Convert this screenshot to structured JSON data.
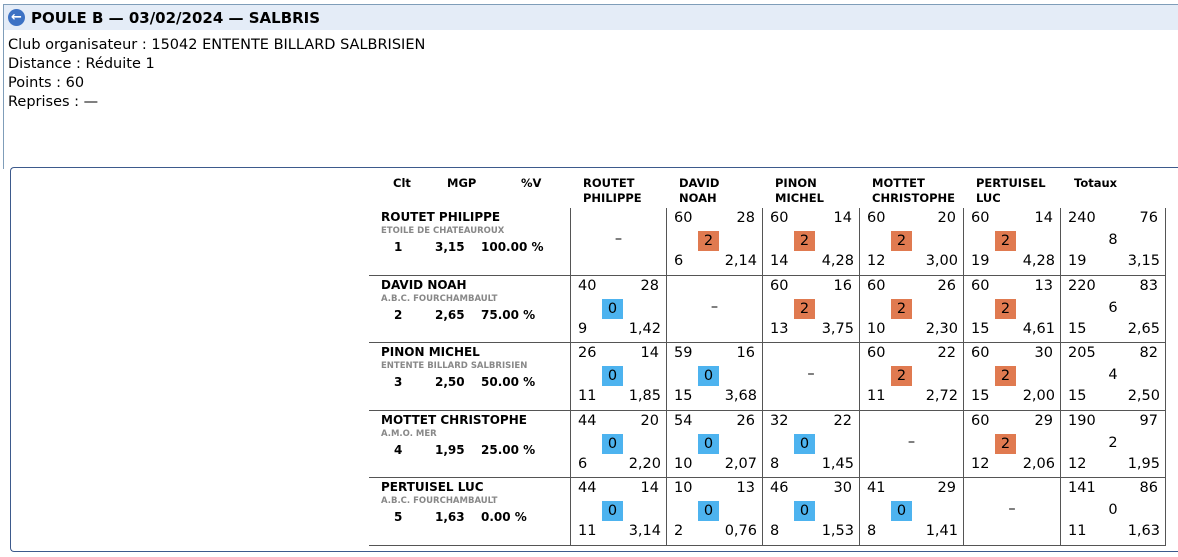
{
  "header": {
    "title": "POULE B — 03/02/2024 — SALBRIS"
  },
  "info": {
    "club": "Club organisateur : 15042 ENTENTE BILLARD SALBRISIEN",
    "distance": "Distance : Réduite 1",
    "points": "Points : 60",
    "reprises": "Reprises : —"
  },
  "table": {
    "columns": {
      "clt": "Clt",
      "mgp": "MGP",
      "pv": "%V",
      "totaux": "Totaux"
    },
    "opponent_headers": [
      [
        "ROUTET",
        "PHILIPPE"
      ],
      [
        "DAVID",
        "NOAH"
      ],
      [
        "PINON",
        "MICHEL"
      ],
      [
        "MOTTET",
        "CHRISTOPHE"
      ],
      [
        "PERTUISEL",
        "LUC"
      ]
    ],
    "rows": [
      {
        "name": "ROUTET PHILIPPE",
        "club": "ETOILE DE CHATEAUROUX",
        "clt": "1",
        "mgp": "3,15",
        "pv": "100.00 %",
        "matches": [
          null,
          {
            "pts": "60",
            "serie": "28",
            "res": "2",
            "rep": "6",
            "moy": "2,14"
          },
          {
            "pts": "60",
            "serie": "14",
            "res": "2",
            "rep": "14",
            "moy": "4,28"
          },
          {
            "pts": "60",
            "serie": "20",
            "res": "2",
            "rep": "12",
            "moy": "3,00"
          },
          {
            "pts": "60",
            "serie": "14",
            "res": "2",
            "rep": "19",
            "moy": "4,28"
          }
        ],
        "total": {
          "pts": "240",
          "serie": "76",
          "res": "8",
          "rep": "19",
          "moy": "3,15"
        }
      },
      {
        "name": "DAVID NOAH",
        "club": "A.B.C. FOURCHAMBAULT",
        "clt": "2",
        "mgp": "2,65",
        "pv": "75.00 %",
        "matches": [
          {
            "pts": "40",
            "serie": "28",
            "res": "0",
            "rep": "9",
            "moy": "1,42"
          },
          null,
          {
            "pts": "60",
            "serie": "16",
            "res": "2",
            "rep": "13",
            "moy": "3,75"
          },
          {
            "pts": "60",
            "serie": "26",
            "res": "2",
            "rep": "10",
            "moy": "2,30"
          },
          {
            "pts": "60",
            "serie": "13",
            "res": "2",
            "rep": "15",
            "moy": "4,61"
          }
        ],
        "total": {
          "pts": "220",
          "serie": "83",
          "res": "6",
          "rep": "15",
          "moy": "2,65"
        }
      },
      {
        "name": "PINON MICHEL",
        "club": "ENTENTE BILLARD SALBRISIEN",
        "clt": "3",
        "mgp": "2,50",
        "pv": "50.00 %",
        "matches": [
          {
            "pts": "26",
            "serie": "14",
            "res": "0",
            "rep": "11",
            "moy": "1,85"
          },
          {
            "pts": "59",
            "serie": "16",
            "res": "0",
            "rep": "15",
            "moy": "3,68"
          },
          null,
          {
            "pts": "60",
            "serie": "22",
            "res": "2",
            "rep": "11",
            "moy": "2,72"
          },
          {
            "pts": "60",
            "serie": "30",
            "res": "2",
            "rep": "15",
            "moy": "2,00"
          }
        ],
        "total": {
          "pts": "205",
          "serie": "82",
          "res": "4",
          "rep": "15",
          "moy": "2,50"
        }
      },
      {
        "name": "MOTTET CHRISTOPHE",
        "club": "A.M.O. MER",
        "clt": "4",
        "mgp": "1,95",
        "pv": "25.00 %",
        "matches": [
          {
            "pts": "44",
            "serie": "20",
            "res": "0",
            "rep": "6",
            "moy": "2,20"
          },
          {
            "pts": "54",
            "serie": "26",
            "res": "0",
            "rep": "10",
            "moy": "2,07"
          },
          {
            "pts": "32",
            "serie": "22",
            "res": "0",
            "rep": "8",
            "moy": "1,45"
          },
          null,
          {
            "pts": "60",
            "serie": "29",
            "res": "2",
            "rep": "12",
            "moy": "2,06"
          }
        ],
        "total": {
          "pts": "190",
          "serie": "97",
          "res": "2",
          "rep": "12",
          "moy": "1,95"
        }
      },
      {
        "name": "PERTUISEL LUC",
        "club": "A.B.C. FOURCHAMBAULT",
        "clt": "5",
        "mgp": "1,63",
        "pv": "0.00 %",
        "matches": [
          {
            "pts": "44",
            "serie": "14",
            "res": "0",
            "rep": "11",
            "moy": "3,14"
          },
          {
            "pts": "10",
            "serie": "13",
            "res": "0",
            "rep": "2",
            "moy": "0,76"
          },
          {
            "pts": "46",
            "serie": "30",
            "res": "0",
            "rep": "8",
            "moy": "1,53"
          },
          {
            "pts": "41",
            "serie": "29",
            "res": "0",
            "rep": "8",
            "moy": "1,41"
          },
          null
        ],
        "total": {
          "pts": "141",
          "serie": "86",
          "res": "0",
          "rep": "11",
          "moy": "1,63"
        }
      }
    ],
    "empty_symbol": "–",
    "colors": {
      "win": "#e07a50",
      "loss": "#4db3ef",
      "header_bg": "#e4ecf7",
      "back_icon": "#3d72c4"
    }
  }
}
